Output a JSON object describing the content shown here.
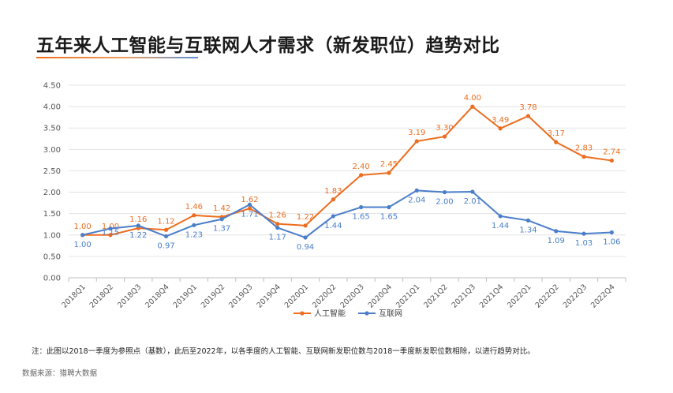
{
  "title": "五年来人工智能与互联网人才需求（新发职位）趋势对比",
  "note": "注：此图以2018一季度为参照点（基数），此后至2022年，以各季度的人工智能、互联网新发职位数与2018一季度新发职位数相除，以进行趋势对比。",
  "source": "数据来源：猎聘大数据",
  "chart_data": {
    "type": "line",
    "categories": [
      "2018Q1",
      "2018Q2",
      "2018Q3",
      "2018Q4",
      "2019Q1",
      "2019Q2",
      "2019Q3",
      "2019Q4",
      "2020Q1",
      "2020Q2",
      "2020Q3",
      "2020Q4",
      "2021Q1",
      "2021Q2",
      "2021Q3",
      "2021Q4",
      "2022Q1",
      "2022Q2",
      "2022Q3",
      "2022Q4"
    ],
    "series": [
      {
        "name": "人工智能",
        "color": "#ed6d1f",
        "values": [
          1.0,
          1.0,
          1.16,
          1.12,
          1.46,
          1.42,
          1.62,
          1.26,
          1.22,
          1.83,
          2.4,
          2.45,
          3.19,
          3.3,
          4.0,
          3.49,
          3.78,
          3.17,
          2.83,
          2.74
        ],
        "labels": [
          "1.00",
          "1.00",
          "1.16",
          "1.12",
          "1.46",
          "1.42",
          "1.62",
          "1.26",
          "1.22",
          "1.83",
          "2.40",
          "2.45",
          "3.19",
          "3.30",
          "4.00",
          "3.49",
          "3.78",
          "3.17",
          "2.83",
          "2.74"
        ]
      },
      {
        "name": "互联网",
        "color": "#4a7ec9",
        "values": [
          1.0,
          1.15,
          1.22,
          0.97,
          1.23,
          1.37,
          1.71,
          1.17,
          0.94,
          1.44,
          1.65,
          1.65,
          2.04,
          2.0,
          2.01,
          1.44,
          1.34,
          1.09,
          1.03,
          1.06
        ],
        "labels": [
          "1.00",
          "1.15",
          "1.22",
          "0.97",
          "1.23",
          "1.37",
          "1.71",
          "1.17",
          "0.94",
          "1.44",
          "1.65",
          "1.65",
          "2.04",
          "2.00",
          "2.01",
          "1.44",
          "1.34",
          "1.09",
          "1.03",
          "1.06"
        ]
      }
    ],
    "yticks": [
      "0.00",
      "0.50",
      "1.00",
      "1.50",
      "2.00",
      "2.50",
      "3.00",
      "3.50",
      "4.00",
      "4.50"
    ],
    "ylim": [
      0,
      4.5
    ],
    "grid": true,
    "legend": "bottom-center"
  }
}
